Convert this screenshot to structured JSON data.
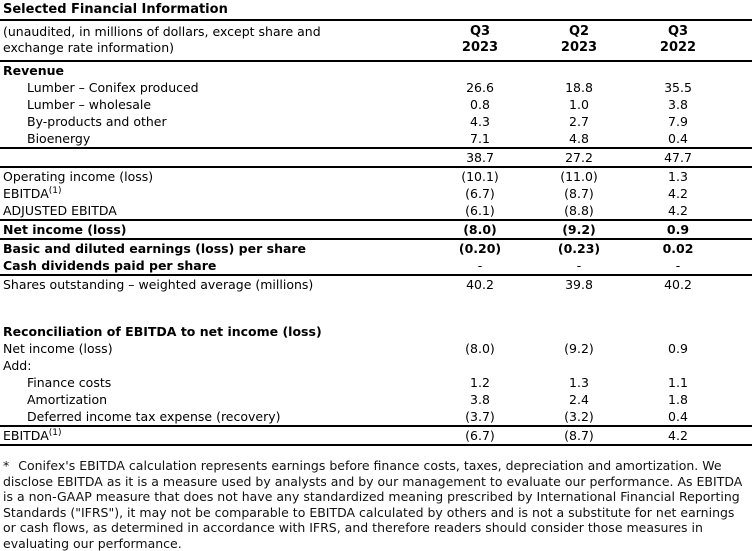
{
  "page_title": "Selected Financial Information",
  "header": {
    "caption_lines": [
      "(unaudited, in millions of dollars, except share and",
      "exchange rate information)"
    ],
    "columns": [
      {
        "line1": "Q3",
        "line2": "2023"
      },
      {
        "line1": "Q2",
        "line2": "2023"
      },
      {
        "line1": "Q3",
        "line2": "2022"
      }
    ]
  },
  "table": {
    "rows": [
      {
        "label": "Revenue",
        "bold": true,
        "values": []
      },
      {
        "label": "Lumber – Conifex produced",
        "indent": true,
        "values": [
          "26.6",
          "18.8",
          "35.5"
        ]
      },
      {
        "label": "Lumber – wholesale",
        "indent": true,
        "values": [
          "0.8",
          "1.0",
          "3.8"
        ]
      },
      {
        "label": "By-products and other",
        "indent": true,
        "values": [
          "4.3",
          "2.7",
          "7.9"
        ]
      },
      {
        "label": "Bioenergy",
        "indent": true,
        "values": [
          "7.1",
          "4.8",
          "0.4"
        ],
        "borderBottom": true
      },
      {
        "label": "",
        "values": [
          "38.7",
          "27.2",
          "47.7"
        ],
        "borderBottom": true
      },
      {
        "label": "Operating income (loss)",
        "values": [
          "(10.1)",
          "(11.0)",
          "1.3"
        ]
      },
      {
        "label": "EBITDA",
        "sup": "(1)",
        "values": [
          "(6.7)",
          "(8.7)",
          "4.2"
        ]
      },
      {
        "label": "ADJUSTED EBITDA",
        "values": [
          "(6.1)",
          "(8.8)",
          "4.2"
        ],
        "borderBottom": true
      },
      {
        "label": "Net income (loss)",
        "bold": true,
        "values": [
          "(8.0)",
          "(9.2)",
          "0.9"
        ],
        "borderBottom": true
      },
      {
        "label": "Basic and diluted earnings (loss) per share",
        "bold": true,
        "values": [
          "(0.20)",
          "(0.23)",
          "0.02"
        ]
      },
      {
        "label": "Cash dividends paid per share",
        "bold": true,
        "values": [
          "-",
          "-",
          "-"
        ],
        "valuesBold": false,
        "borderBottom": true
      },
      {
        "label": "Shares outstanding – weighted average (millions)",
        "values": [
          "40.2",
          "39.8",
          "40.2"
        ]
      },
      {
        "spacer": true
      },
      {
        "label": "Reconciliation of EBITDA to net income (loss)",
        "bold": true,
        "values": []
      },
      {
        "label": "Net income (loss)",
        "values": [
          "(8.0)",
          "(9.2)",
          "0.9"
        ]
      },
      {
        "label": "Add:",
        "values": []
      },
      {
        "label": "Finance costs",
        "indent": true,
        "values": [
          "1.2",
          "1.3",
          "1.1"
        ]
      },
      {
        "label": "Amortization",
        "indent": true,
        "values": [
          "3.8",
          "2.4",
          "1.8"
        ]
      },
      {
        "label": "Deferred income tax expense (recovery)",
        "indent": true,
        "values": [
          "(3.7)",
          "(3.2)",
          "0.4"
        ],
        "borderBottom": true
      },
      {
        "label": "EBITDA",
        "sup": "(1)",
        "values": [
          "(6.7)",
          "(8.7)",
          "4.2"
        ],
        "borderBottom": true
      }
    ]
  },
  "footnote": {
    "marker": "*",
    "text": "Conifex's EBITDA calculation represents earnings before finance costs, taxes, depreciation and amortization. We disclose EBITDA as it is a measure used by analysts and by our management to evaluate our performance. As EBITDA is a non-GAAP measure that does not have any standardized meaning prescribed by International Financial Reporting Standards (\"IFRS\"), it may not be comparable to EBITDA calculated by others and is not a substitute for net earnings or cash flows, as determined in accordance with IFRS, and therefore readers should consider those measures in evaluating our performance."
  },
  "colors": {
    "text": "#000000",
    "rule": "#000000",
    "background": "#ffffff"
  }
}
